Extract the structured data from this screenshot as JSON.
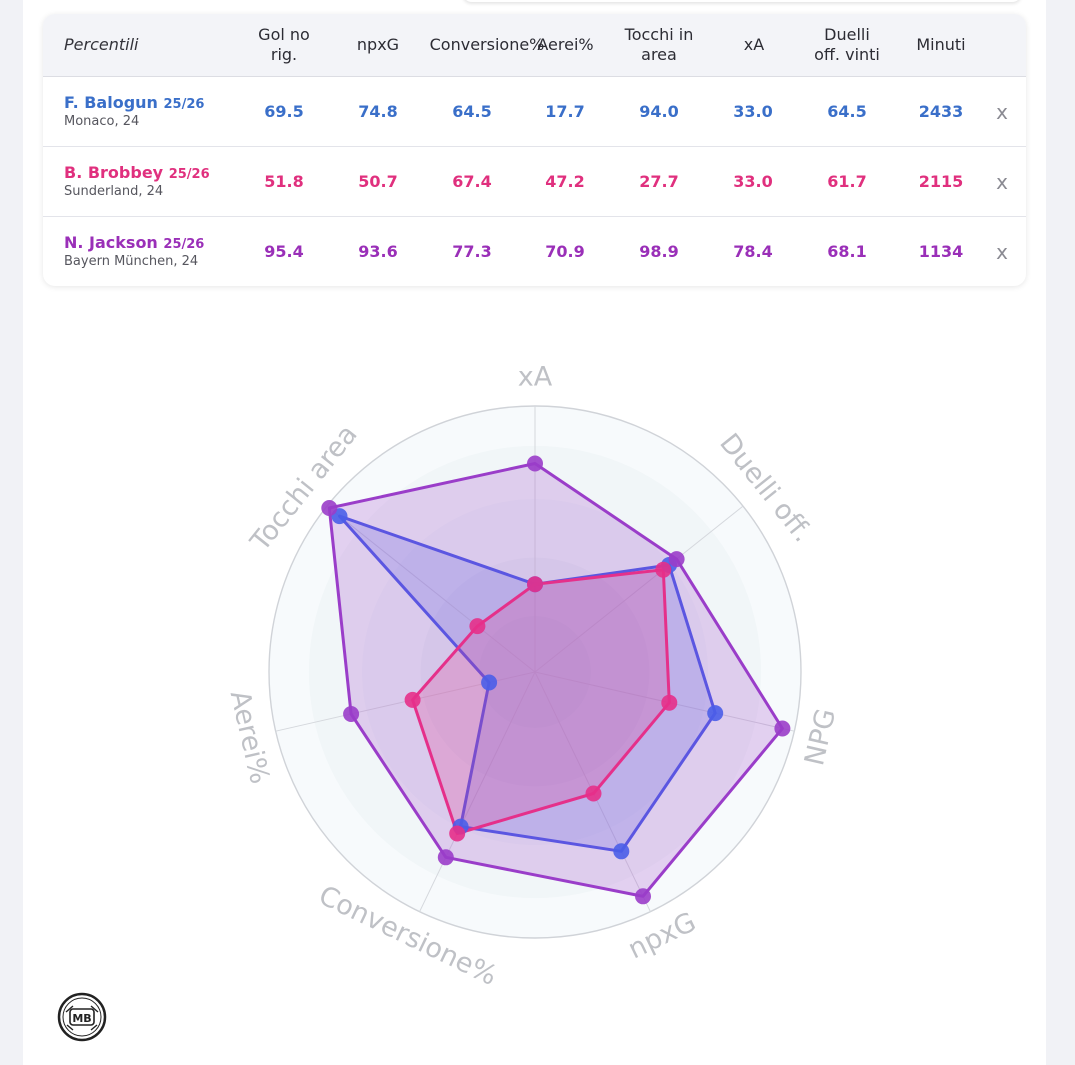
{
  "table": {
    "header": {
      "first": "Percentili",
      "columns": [
        "Gol no\nrig.",
        "npxG",
        "Conversione%",
        "Aerei%",
        "Tocchi in\narea",
        "xA",
        "Duelli\noff. vinti",
        "Minuti"
      ]
    },
    "rows": [
      {
        "name": "F. Balogun",
        "season": "25/26",
        "club": "Monaco, 24",
        "color": "#3a6fc9",
        "values": [
          "69.5",
          "74.8",
          "64.5",
          "17.7",
          "94.0",
          "33.0",
          "64.5",
          "2433"
        ],
        "remove": "x"
      },
      {
        "name": "B. Brobbey",
        "season": "25/26",
        "club": "Sunderland, 24",
        "color": "#e0307e",
        "values": [
          "51.8",
          "50.7",
          "67.4",
          "47.2",
          "27.7",
          "33.0",
          "61.7",
          "2115"
        ],
        "remove": "x"
      },
      {
        "name": "N. Jackson",
        "season": "25/26",
        "club": "Bayern München, 24",
        "color": "#9a2fb8",
        "values": [
          "95.4",
          "93.6",
          "77.3",
          "70.9",
          "98.9",
          "78.4",
          "68.1",
          "1134"
        ],
        "remove": "x"
      }
    ]
  },
  "chart_data": {
    "type": "radar",
    "axes": [
      "xA",
      "Duelli off.",
      "NPG",
      "npxG",
      "Conversione%",
      "Aerei%",
      "Tocchi area"
    ],
    "range": [
      0,
      100
    ],
    "series": [
      {
        "name": "F. Balogun",
        "color": "#4a5ee8",
        "values": [
          33.0,
          64.5,
          69.5,
          74.8,
          64.5,
          17.7,
          94.0
        ]
      },
      {
        "name": "N. Jackson",
        "color": "#9a3dc9",
        "values": [
          78.4,
          68.1,
          95.4,
          93.6,
          77.3,
          70.9,
          98.9
        ]
      },
      {
        "name": "B. Brobbey",
        "color": "#e5308a",
        "values": [
          33.0,
          61.7,
          51.8,
          50.7,
          67.4,
          47.2,
          27.7
        ]
      }
    ]
  },
  "logo": {
    "text": "MB"
  }
}
